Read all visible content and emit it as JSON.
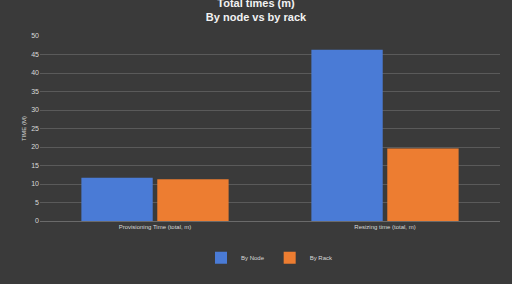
{
  "chart_data": {
    "type": "bar",
    "title": "Total times (m)",
    "subtitle": "By node vs by rack",
    "y_label": "TIME (M)",
    "categories": [
      "Provisioning Time (total, m)",
      "Resizing time (total, m)"
    ],
    "series": [
      {
        "name": "By Node",
        "color": "#4a7bd6",
        "values": [
          11.7,
          46.3
        ]
      },
      {
        "name": "By Rack",
        "color": "#ed7d31",
        "values": [
          11.3,
          19.6
        ]
      }
    ],
    "ylim": [
      0,
      50
    ],
    "yticks": [
      0,
      5,
      10,
      15,
      20,
      25,
      30,
      35,
      40,
      45,
      50
    ],
    "grid": true,
    "legend": "bottom"
  }
}
